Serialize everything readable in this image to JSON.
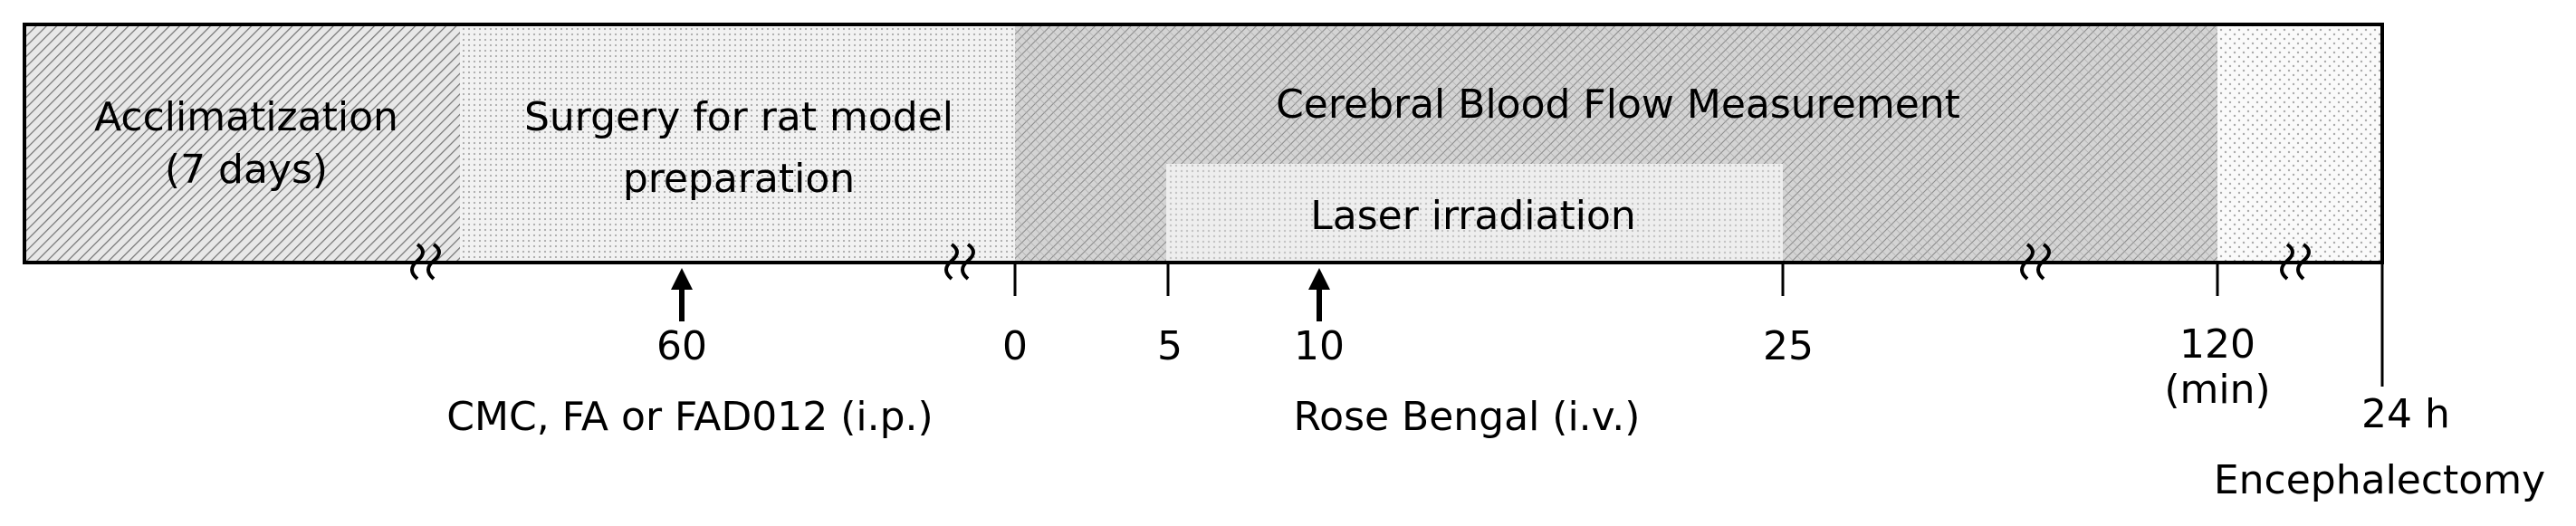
{
  "segments": [
    {
      "label": [
        "Acclimatization",
        "(7 days)"
      ]
    },
    {
      "label": [
        "Surgery for rat model",
        "preparation"
      ]
    },
    {
      "label": [
        "Cerebral Blood Flow Measurement"
      ]
    },
    {
      "label": [
        "Laser irradiation"
      ]
    }
  ],
  "ticks": [
    {
      "label": "60"
    },
    {
      "label": "0"
    },
    {
      "label": "5"
    },
    {
      "label": "10"
    },
    {
      "label": "25"
    },
    {
      "label": "120",
      "unit": "(min)"
    },
    {
      "label": "24 h"
    }
  ],
  "annotations": [
    "CMC,  FA or FAD012 (i.p.)",
    "Rose Bengal (i.v.)",
    "Encephalectomy"
  ]
}
